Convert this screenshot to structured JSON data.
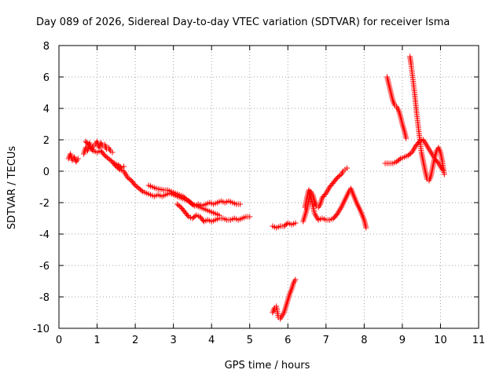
{
  "chart_data": {
    "type": "scatter",
    "title": "Day 089 of 2026, Sidereal Day-to-day VTEC variation (SDTVAR) for receiver Isma",
    "xlabel": "GPS time / hours",
    "ylabel": "SDTVAR / TECUs",
    "xlim": [
      0,
      11
    ],
    "ylim": [
      -10,
      8
    ],
    "xticks": [
      "0",
      "1",
      "2",
      "3",
      "4",
      "5",
      "6",
      "7",
      "8",
      "9",
      "10",
      "11"
    ],
    "yticks": [
      "-10",
      "-8",
      "-6",
      "-4",
      "-2",
      "0",
      "2",
      "4",
      "6",
      "8"
    ],
    "grid": true,
    "marker": "+",
    "series": [
      {
        "name": "SDTVAR",
        "color": "#ff0000",
        "segments": [
          [
            [
              0.25,
              0.8
            ],
            [
              0.3,
              1.1
            ],
            [
              0.35,
              0.7
            ],
            [
              0.4,
              0.9
            ],
            [
              0.45,
              0.6
            ],
            [
              0.5,
              0.8
            ]
          ],
          [
            [
              0.65,
              1.1
            ],
            [
              0.7,
              1.5
            ],
            [
              0.75,
              1.3
            ],
            [
              0.8,
              1.8
            ],
            [
              0.85,
              1.4
            ],
            [
              0.9,
              1.6
            ],
            [
              0.95,
              1.7
            ],
            [
              1.0,
              1.9
            ],
            [
              1.05,
              1.5
            ],
            [
              1.1,
              1.8
            ],
            [
              1.15,
              1.6
            ],
            [
              1.2,
              1.7
            ],
            [
              1.25,
              1.4
            ],
            [
              1.3,
              1.5
            ],
            [
              1.35,
              1.3
            ],
            [
              1.4,
              1.2
            ]
          ],
          [
            [
              0.7,
              1.9
            ],
            [
              0.8,
              1.6
            ],
            [
              0.9,
              1.3
            ],
            [
              1.0,
              1.2
            ],
            [
              1.1,
              1.3
            ],
            [
              1.2,
              1.0
            ],
            [
              1.3,
              0.8
            ],
            [
              1.4,
              0.6
            ],
            [
              1.5,
              0.3
            ],
            [
              1.6,
              0.1
            ],
            [
              1.7,
              0.0
            ],
            [
              1.8,
              -0.4
            ],
            [
              1.9,
              -0.6
            ],
            [
              2.0,
              -0.9
            ],
            [
              2.1,
              -1.1
            ],
            [
              2.2,
              -1.3
            ],
            [
              2.3,
              -1.4
            ],
            [
              2.4,
              -1.5
            ],
            [
              2.5,
              -1.6
            ],
            [
              2.6,
              -1.5
            ],
            [
              2.7,
              -1.6
            ],
            [
              2.8,
              -1.5
            ],
            [
              2.9,
              -1.4
            ],
            [
              3.0,
              -1.5
            ],
            [
              3.1,
              -1.6
            ],
            [
              3.2,
              -1.7
            ],
            [
              3.3,
              -1.8
            ],
            [
              3.4,
              -1.9
            ],
            [
              3.5,
              -2.1
            ],
            [
              3.6,
              -2.2
            ],
            [
              3.7,
              -2.3
            ],
            [
              3.8,
              -2.4
            ],
            [
              3.9,
              -2.5
            ],
            [
              4.0,
              -2.6
            ],
            [
              4.1,
              -2.7
            ],
            [
              4.2,
              -2.8
            ]
          ],
          [
            [
              1.45,
              0.5
            ],
            [
              1.55,
              0.4
            ],
            [
              1.65,
              0.2
            ],
            [
              1.7,
              0.3
            ]
          ],
          [
            [
              2.35,
              -0.9
            ],
            [
              2.45,
              -1.0
            ],
            [
              2.55,
              -1.1
            ],
            [
              2.65,
              -1.15
            ],
            [
              2.75,
              -1.2
            ],
            [
              2.85,
              -1.2
            ],
            [
              2.95,
              -1.3
            ],
            [
              3.05,
              -1.4
            ],
            [
              3.15,
              -1.5
            ],
            [
              3.25,
              -1.6
            ],
            [
              3.35,
              -1.8
            ],
            [
              3.45,
              -2.0
            ],
            [
              3.55,
              -2.2
            ],
            [
              3.65,
              -2.1
            ],
            [
              3.75,
              -2.2
            ],
            [
              3.85,
              -2.1
            ],
            [
              3.95,
              -2.0
            ],
            [
              4.05,
              -2.1
            ],
            [
              4.15,
              -2.0
            ],
            [
              4.25,
              -1.9
            ],
            [
              4.35,
              -2.0
            ],
            [
              4.45,
              -1.9
            ],
            [
              4.55,
              -2.0
            ],
            [
              4.65,
              -2.1
            ],
            [
              4.75,
              -2.1
            ]
          ],
          [
            [
              3.1,
              -2.1
            ],
            [
              3.2,
              -2.3
            ],
            [
              3.3,
              -2.6
            ],
            [
              3.4,
              -2.9
            ],
            [
              3.5,
              -3.0
            ],
            [
              3.6,
              -2.8
            ],
            [
              3.7,
              -2.9
            ],
            [
              3.8,
              -3.2
            ],
            [
              3.9,
              -3.1
            ],
            [
              4.0,
              -3.2
            ],
            [
              4.1,
              -3.1
            ],
            [
              4.2,
              -3.0
            ],
            [
              4.3,
              -3.0
            ],
            [
              4.4,
              -3.1
            ],
            [
              4.5,
              -3.1
            ],
            [
              4.6,
              -3.0
            ],
            [
              4.7,
              -3.1
            ],
            [
              4.8,
              -3.0
            ],
            [
              4.9,
              -2.9
            ],
            [
              5.0,
              -2.9
            ]
          ],
          [
            [
              5.6,
              -3.5
            ],
            [
              5.7,
              -3.6
            ],
            [
              5.8,
              -3.5
            ],
            [
              5.9,
              -3.5
            ],
            [
              6.0,
              -3.3
            ],
            [
              6.1,
              -3.4
            ],
            [
              6.2,
              -3.3
            ]
          ],
          [
            [
              5.6,
              -9.0
            ],
            [
              5.65,
              -8.7
            ],
            [
              5.7,
              -8.6
            ],
            [
              5.75,
              -9.3
            ],
            [
              5.8,
              -9.4
            ],
            [
              5.85,
              -9.2
            ],
            [
              5.9,
              -9.0
            ],
            [
              5.95,
              -8.6
            ],
            [
              6.0,
              -8.2
            ],
            [
              6.05,
              -7.8
            ],
            [
              6.1,
              -7.5
            ],
            [
              6.15,
              -7.1
            ],
            [
              6.2,
              -6.9
            ]
          ],
          [
            [
              6.4,
              -3.2
            ],
            [
              6.45,
              -2.8
            ],
            [
              6.5,
              -2.4
            ],
            [
              6.55,
              -1.8
            ],
            [
              6.6,
              -1.3
            ],
            [
              6.65,
              -1.5
            ],
            [
              6.7,
              -1.9
            ],
            [
              6.75,
              -2.2
            ],
            [
              6.8,
              -2.3
            ],
            [
              6.85,
              -2.1
            ],
            [
              6.9,
              -1.7
            ],
            [
              7.0,
              -1.4
            ],
            [
              7.1,
              -1.0
            ],
            [
              7.2,
              -0.7
            ],
            [
              7.3,
              -0.4
            ],
            [
              7.4,
              -0.2
            ],
            [
              7.45,
              0.0
            ],
            [
              7.5,
              0.1
            ],
            [
              7.55,
              0.2
            ]
          ],
          [
            [
              6.45,
              -2.3
            ],
            [
              6.5,
              -1.7
            ],
            [
              6.55,
              -1.2
            ],
            [
              6.6,
              -1.6
            ],
            [
              6.7,
              -2.7
            ],
            [
              6.8,
              -3.1
            ],
            [
              6.9,
              -3.0
            ],
            [
              7.0,
              -3.1
            ],
            [
              7.1,
              -3.1
            ],
            [
              7.2,
              -3.0
            ],
            [
              7.3,
              -2.7
            ],
            [
              7.4,
              -2.3
            ],
            [
              7.5,
              -1.8
            ],
            [
              7.6,
              -1.3
            ],
            [
              7.65,
              -1.1
            ],
            [
              7.7,
              -1.4
            ],
            [
              7.8,
              -2.0
            ],
            [
              7.9,
              -2.5
            ],
            [
              8.0,
              -3.1
            ],
            [
              8.05,
              -3.6
            ]
          ],
          [
            [
              8.6,
              6.0
            ],
            [
              8.65,
              5.5
            ],
            [
              8.7,
              5.0
            ],
            [
              8.75,
              4.5
            ],
            [
              8.8,
              4.2
            ],
            [
              8.85,
              4.1
            ],
            [
              8.9,
              3.9
            ],
            [
              8.95,
              3.5
            ],
            [
              9.0,
              3.0
            ],
            [
              9.05,
              2.6
            ],
            [
              9.1,
              2.1
            ]
          ],
          [
            [
              8.55,
              0.5
            ],
            [
              8.65,
              0.5
            ],
            [
              8.75,
              0.5
            ],
            [
              8.85,
              0.6
            ],
            [
              8.95,
              0.8
            ],
            [
              9.05,
              0.9
            ],
            [
              9.15,
              1.0
            ],
            [
              9.25,
              1.2
            ],
            [
              9.35,
              1.6
            ],
            [
              9.45,
              1.9
            ],
            [
              9.55,
              2.0
            ],
            [
              9.65,
              1.6
            ],
            [
              9.75,
              1.2
            ],
            [
              9.85,
              0.8
            ],
            [
              9.95,
              0.5
            ],
            [
              10.0,
              0.3
            ],
            [
              10.05,
              0.1
            ]
          ],
          [
            [
              9.2,
              7.3
            ],
            [
              9.23,
              6.8
            ],
            [
              9.26,
              6.2
            ],
            [
              9.29,
              5.6
            ],
            [
              9.32,
              5.0
            ],
            [
              9.35,
              4.3
            ],
            [
              9.38,
              3.6
            ],
            [
              9.41,
              3.0
            ],
            [
              9.44,
              2.4
            ],
            [
              9.47,
              1.8
            ],
            [
              9.5,
              1.2
            ],
            [
              9.55,
              0.6
            ],
            [
              9.6,
              0.0
            ],
            [
              9.65,
              -0.5
            ],
            [
              9.7,
              -0.6
            ],
            [
              9.75,
              -0.3
            ],
            [
              9.8,
              0.3
            ],
            [
              9.85,
              0.9
            ],
            [
              9.9,
              1.3
            ],
            [
              9.95,
              1.5
            ],
            [
              10.0,
              1.2
            ],
            [
              10.05,
              0.6
            ],
            [
              10.1,
              -0.2
            ]
          ]
        ]
      }
    ]
  }
}
